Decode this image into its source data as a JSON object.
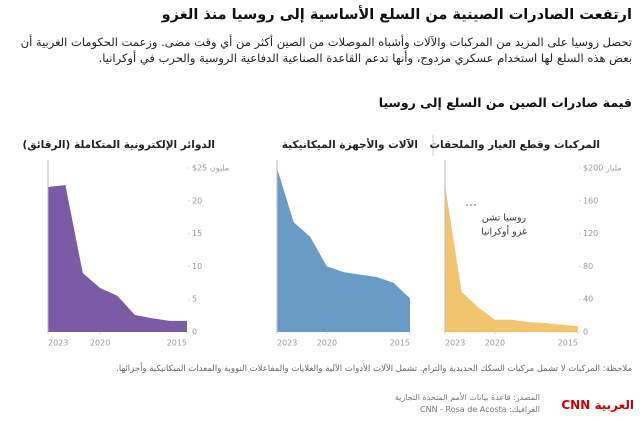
{
  "header": {
    "title": "ارتفعت الصادرات الصينية من السلع الأساسية إلى روسيا منذ الغزو",
    "subtitle": "تحصل روسيا على المزيد من المركبات والآلات وأشباه الموصلات من الصين أكثر من أي وقت مضى. وزعمت الحكومات الغربية أن بعض هذه السلع لها استخدام عسكري مزدوج، وأنها تدعم القاعدة الصناعية الدفاعية الروسية والحرب في أوكرانيا.",
    "section_title": "قيمة صادرات الصين من السلع إلى روسيا"
  },
  "chart_data": [
    {
      "type": "area",
      "title": "المركبات وقطع الغيار والملحقات",
      "color": "#f2c46d",
      "x": [
        2023,
        2022,
        2021,
        2020,
        2019,
        2018,
        2017,
        2016,
        2015
      ],
      "values": [
        179,
        49,
        30,
        15,
        15,
        12,
        11,
        9,
        7
      ],
      "xlim": [
        2023,
        2015
      ],
      "xticks": [
        2023,
        2020,
        2015
      ],
      "ylim": [
        0,
        200
      ],
      "yticks": [
        0,
        40,
        80,
        120,
        160,
        {
          "value": 200,
          "label": "$200 مليار"
        }
      ],
      "annotation": [
        "روسيا تشن",
        "غزو أوكرانيا"
      ]
    },
    {
      "type": "area",
      "title": "الآلات والأجهزة الميكانيكية",
      "color": "#6a9bc7",
      "x": [
        2023,
        2022,
        2021,
        2020,
        2019,
        2018,
        2017,
        2016,
        2015
      ],
      "values": [
        200,
        134,
        116,
        80,
        73,
        70,
        67,
        60,
        41
      ],
      "xlim": [
        2023,
        2015
      ],
      "xticks": [
        2023,
        2020,
        2015
      ],
      "ylim": [
        0,
        200
      ]
    },
    {
      "type": "area",
      "title": "الدوائر الإلكترونية المتكاملة (الرقائق)",
      "color": "#7b5aa6",
      "x": [
        2023,
        2022,
        2021,
        2020,
        2019,
        2018,
        2017,
        2016,
        2015
      ],
      "values": [
        22.1,
        22.4,
        9,
        6.7,
        5.5,
        2.6,
        2.1,
        1.7,
        1.7
      ],
      "xlim": [
        2023,
        2015
      ],
      "xticks": [
        2023,
        2020,
        2015
      ],
      "ylim": [
        0,
        25
      ],
      "yticks": [
        0,
        5,
        10,
        15,
        20,
        {
          "value": 25,
          "label": "$25 مليون"
        }
      ]
    }
  ],
  "note": "ملاحظة: المركبات لا تشمل مركبات السكك الحديدية والترام. تشمل الآلات الأدوات الآلية والغلايات والمفاعلات النووية والمعدات الميكانيكية وأجزائها.",
  "source": [
    "المصدر: قاعدة بيانات الأمم المتحدة التجارية",
    "الغرافيك: CNN - Rosa de Acosta"
  ],
  "logo": "CNN العربية"
}
